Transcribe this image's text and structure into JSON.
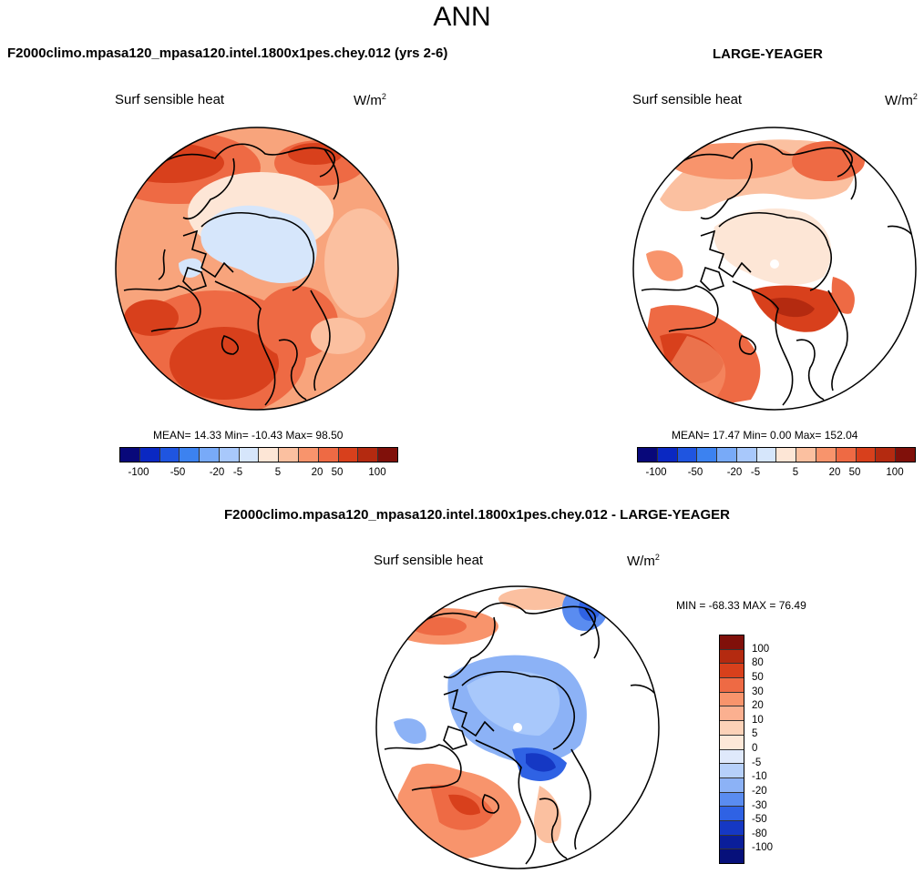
{
  "main_title": "ANN",
  "palette": [
    "#08087a",
    "#0a28c2",
    "#1f55e0",
    "#3c82f0",
    "#78aaf8",
    "#a8c8fb",
    "#d6e6fb",
    "#fde6d6",
    "#fbc0a0",
    "#f8946c",
    "#ee6a44",
    "#d8401c",
    "#b42a10",
    "#80100a"
  ],
  "panel_a": {
    "title": "F2000climo.mpasa120_mpasa120.intel.1800x1pes.chey.012 (yrs 2-6)",
    "variable": "Surf sensible heat",
    "units": "W/m",
    "units_exp": "2",
    "stats": "MEAN=  14.33  Min= -10.43  Max=  98.50",
    "colorbar_ticks": [
      "-100",
      "-50",
      "-20",
      "-5",
      "5",
      "20",
      "50",
      "100"
    ]
  },
  "panel_b": {
    "title": "LARGE-YEAGER",
    "variable": "Surf sensible heat",
    "units": "W/m",
    "units_exp": "2",
    "stats": "MEAN=  17.47  Min=   0.00  Max= 152.04",
    "colorbar_ticks": [
      "-100",
      "-50",
      "-20",
      "-5",
      "5",
      "20",
      "50",
      "100"
    ]
  },
  "panel_diff": {
    "title": "F2000climo.mpasa120_mpasa120.intel.1800x1pes.chey.012 - LARGE-YEAGER",
    "variable": "Surf sensible heat",
    "units": "W/m",
    "units_exp": "2",
    "minmax": "MIN = -68.33 MAX =  76.49",
    "colorbar_labels": [
      "100",
      "80",
      "50",
      "30",
      "20",
      "10",
      "5",
      "0",
      "-5",
      "-10",
      "-20",
      "-30",
      "-50",
      "-80",
      "-100"
    ],
    "colorbar_colors": [
      "#80100a",
      "#b42a10",
      "#d8401c",
      "#ee6a44",
      "#f8946c",
      "#fbb090",
      "#fcd2b8",
      "#fde8d8",
      "#dfe9fb",
      "#b6d0fa",
      "#8cb2f6",
      "#5a8cf0",
      "#2f62e4",
      "#1538c4",
      "#0a1e9a",
      "#06107a"
    ]
  }
}
